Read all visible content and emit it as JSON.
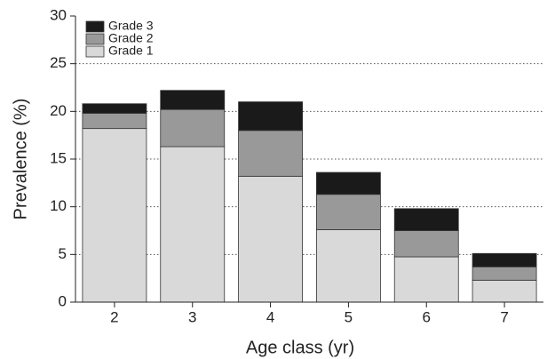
{
  "chart_data": {
    "type": "stacked_bar",
    "x_label": "Age class (yr)",
    "y_label": "Prevalence (%)",
    "categories": [
      "2",
      "3",
      "4",
      "5",
      "6",
      "7"
    ],
    "series": [
      {
        "name": "Grade 1",
        "color": "#d9d9d9",
        "values": [
          18.2,
          16.3,
          13.2,
          7.6,
          4.75,
          2.3
        ]
      },
      {
        "name": "Grade 2",
        "color": "#999999",
        "values": [
          1.6,
          3.9,
          4.8,
          3.7,
          2.75,
          1.4
        ]
      },
      {
        "name": "Grade 3",
        "color": "#1a1a1a",
        "values": [
          1.0,
          2.0,
          3.0,
          2.3,
          2.3,
          1.4
        ]
      }
    ],
    "ylim": [
      0,
      30
    ],
    "yticks": [
      0,
      5,
      10,
      15,
      20,
      25,
      30
    ],
    "grid": true,
    "legend": "upper left"
  }
}
